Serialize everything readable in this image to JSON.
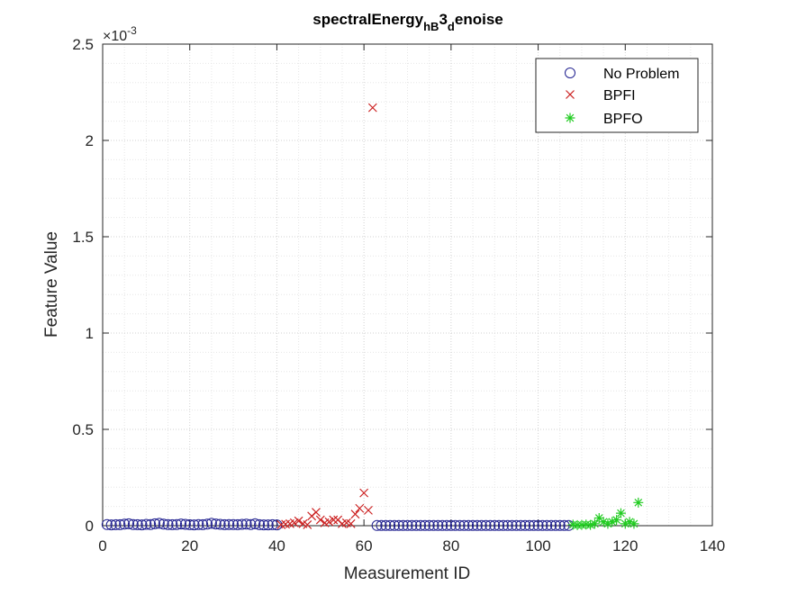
{
  "chart_data": {
    "type": "scatter",
    "title_main": "spectralEnergy",
    "title_sub1": "hB",
    "title_mid": "3",
    "title_sub2": "d",
    "title_end": "enoise",
    "xlabel": "Measurement ID",
    "ylabel": "Feature Value",
    "exponent_base": "×10",
    "exponent_power": "-3",
    "xlim": [
      0,
      140
    ],
    "ylim": [
      0,
      2.5
    ],
    "xticks": [
      0,
      20,
      40,
      60,
      80,
      100,
      120,
      140
    ],
    "xtick_labels": [
      "0",
      "20",
      "40",
      "60",
      "80",
      "100",
      "120",
      "140"
    ],
    "yticks": [
      0,
      0.5,
      1,
      1.5,
      2,
      2.5
    ],
    "ytick_labels": [
      "0",
      "0.5",
      "1",
      "1.5",
      "2",
      "2.5"
    ],
    "grid": true,
    "minor_grid": true,
    "legend_position": "top-right",
    "series": [
      {
        "name": "No Problem",
        "marker": "circle",
        "color": "#1f1f8f",
        "x": [
          1,
          2,
          3,
          4,
          5,
          6,
          7,
          8,
          9,
          10,
          11,
          12,
          13,
          14,
          15,
          16,
          17,
          18,
          19,
          20,
          21,
          22,
          23,
          24,
          25,
          26,
          27,
          28,
          29,
          30,
          31,
          32,
          33,
          34,
          35,
          36,
          37,
          38,
          39,
          40,
          63,
          64,
          65,
          66,
          67,
          68,
          69,
          70,
          71,
          72,
          73,
          74,
          75,
          76,
          77,
          78,
          79,
          80,
          81,
          82,
          83,
          84,
          85,
          86,
          87,
          88,
          89,
          90,
          91,
          92,
          93,
          94,
          95,
          96,
          97,
          98,
          99,
          100,
          101,
          102,
          103,
          104,
          105,
          106,
          107
        ],
        "y": [
          0.006,
          0.004,
          0.005,
          0.005,
          0.008,
          0.01,
          0.006,
          0.005,
          0.004,
          0.007,
          0.006,
          0.01,
          0.012,
          0.008,
          0.006,
          0.005,
          0.006,
          0.009,
          0.007,
          0.005,
          0.004,
          0.006,
          0.005,
          0.008,
          0.012,
          0.009,
          0.007,
          0.005,
          0.006,
          0.006,
          0.005,
          0.007,
          0.008,
          0.006,
          0.01,
          0.005,
          0.004,
          0.004,
          0.005,
          0.004,
          0.001,
          0.001,
          0.001,
          0.001,
          0.001,
          0.001,
          0.001,
          0.001,
          0.001,
          0.001,
          0.001,
          0.001,
          0.001,
          0.001,
          0.001,
          0.001,
          0.001,
          0.001,
          0.001,
          0.001,
          0.001,
          0.001,
          0.001,
          0.001,
          0.001,
          0.001,
          0.001,
          0.001,
          0.001,
          0.001,
          0.001,
          0.001,
          0.001,
          0.001,
          0.001,
          0.001,
          0.001,
          0.001,
          0.001,
          0.001,
          0.001,
          0.001,
          0.001,
          0.001,
          0.001
        ]
      },
      {
        "name": "BPFI",
        "marker": "x",
        "color": "#cc2222",
        "x": [
          41,
          42,
          43,
          44,
          45,
          46,
          47,
          48,
          49,
          50,
          51,
          52,
          53,
          54,
          55,
          56,
          57,
          58,
          59,
          60,
          61,
          62
        ],
        "y": [
          0.005,
          0.008,
          0.01,
          0.015,
          0.025,
          0.01,
          0.005,
          0.05,
          0.07,
          0.03,
          0.015,
          0.02,
          0.03,
          0.03,
          0.01,
          0.015,
          0.01,
          0.06,
          0.09,
          0.17,
          0.08,
          2.17
        ]
      },
      {
        "name": "BPFO",
        "marker": "star",
        "color": "#22cc22",
        "x": [
          108,
          109,
          110,
          111,
          112,
          113,
          114,
          115,
          116,
          117,
          118,
          119,
          120,
          121,
          122,
          123
        ],
        "y": [
          0.005,
          0.003,
          0.004,
          0.006,
          0.004,
          0.01,
          0.04,
          0.02,
          0.01,
          0.02,
          0.03,
          0.065,
          0.01,
          0.02,
          0.01,
          0.12
        ]
      }
    ]
  }
}
